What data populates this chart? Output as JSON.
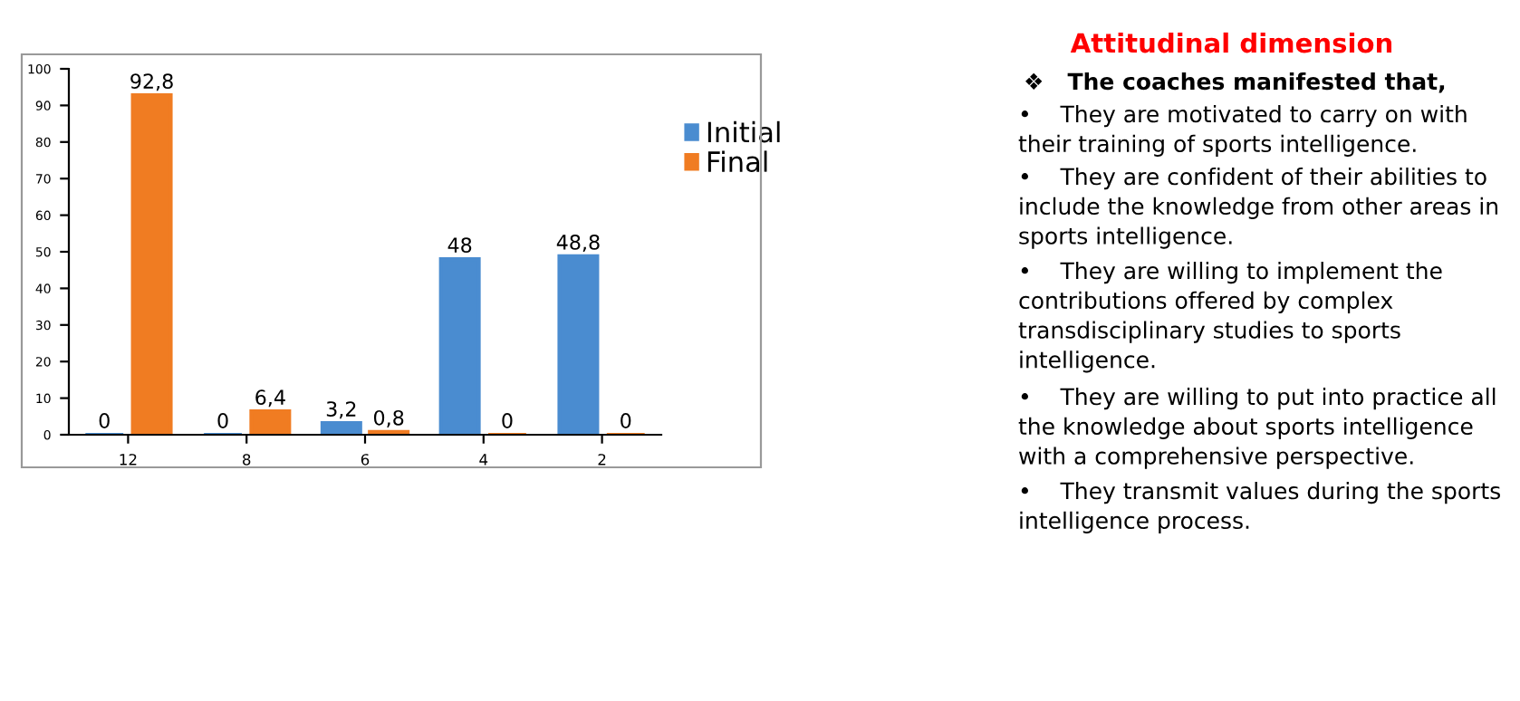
{
  "chart_data": [
    {
      "type": "bar",
      "categories": [
        "12",
        "8",
        "6",
        "4",
        "2"
      ],
      "series": [
        {
          "name": "Initial",
          "color": "#4a8cd0",
          "values": [
            0,
            0,
            3.2,
            48,
            48.8
          ],
          "value_labels": [
            "0",
            "0",
            "3,2",
            "48",
            "48,8"
          ]
        },
        {
          "name": "Final",
          "color": "#f07c22",
          "values": [
            92.8,
            6.4,
            0.8,
            0,
            0
          ],
          "value_labels": [
            "92,8",
            "6,4",
            "0,8",
            "0",
            "0"
          ]
        }
      ],
      "ylim": [
        0,
        100
      ],
      "yticks": [
        0,
        10,
        20,
        30,
        40,
        50,
        60,
        70,
        80,
        90,
        100
      ],
      "grid": false,
      "legend": "right"
    },
    {
      "type": "other",
      "title": "Attitudinal dimension",
      "subtitle": "❖   The coaches manifested that,",
      "annotations": [
        "•    They are motivated to carry on with their training of sports intelligence.",
        "•    They are confident of their abilities to include the knowledge from other areas in sports intelligence.",
        "•    They are willing to implement the contributions offered by complex transdisciplinary studies to sports intelligence.",
        "•    They are willing to put into practice all the knowledge about sports intelligence with a comprehensive perspective.",
        "•    They transmit values during the sports intelligence process."
      ]
    }
  ]
}
